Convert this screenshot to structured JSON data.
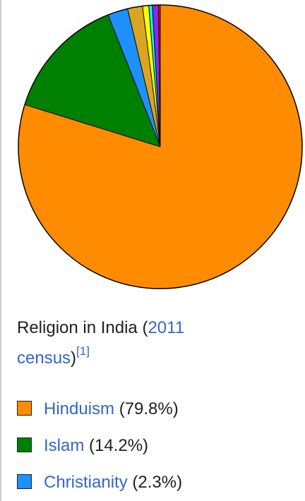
{
  "chart_data": {
    "type": "pie",
    "caption": [
      "Religion in India (",
      "2011 census",
      ")",
      "[1]"
    ],
    "categories": [
      "Hinduism",
      "Islam",
      "Christianity",
      null,
      null,
      null,
      null,
      null
    ],
    "values": [
      79.8,
      14.2,
      2.3,
      1.7,
      0.7,
      0.4,
      0.7,
      0.2
    ],
    "value_labels": [
      "(79.8%)",
      "(14.2%)",
      "(2.3%)",
      null,
      null,
      null,
      null,
      null
    ],
    "colors": [
      "#ff8c00",
      "#008000",
      "#1e90ff",
      "#daa520",
      "#ffff00",
      "#00ffff",
      "#8a2be2",
      "#ff0033"
    ]
  }
}
